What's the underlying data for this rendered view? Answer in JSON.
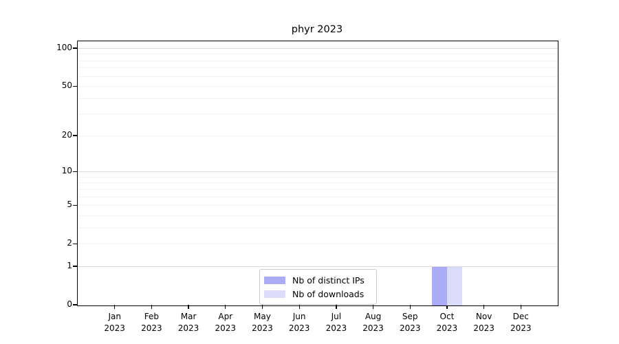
{
  "chart_data": {
    "type": "bar",
    "title": "phyr 2023",
    "categories": [
      "Jan 2023",
      "Feb 2023",
      "Mar 2023",
      "Apr 2023",
      "May 2023",
      "Jun 2023",
      "Jul 2023",
      "Aug 2023",
      "Sep 2023",
      "Oct 2023",
      "Nov 2023",
      "Dec 2023"
    ],
    "series": [
      {
        "name": "Nb of distinct IPs",
        "color": "#a9abf5",
        "values": [
          0,
          0,
          0,
          0,
          0,
          0,
          0,
          0,
          0,
          1,
          0,
          0
        ]
      },
      {
        "name": "Nb of downloads",
        "color": "#dbdcfa",
        "values": [
          0,
          0,
          0,
          0,
          0,
          0,
          0,
          0,
          0,
          1,
          0,
          0
        ]
      }
    ],
    "xlabel": "",
    "ylabel": "",
    "yscale": "log1p",
    "yticks": [
      0,
      1,
      2,
      5,
      10,
      20,
      50,
      100
    ],
    "ylim": [
      0,
      113
    ],
    "grid": true,
    "legend_position": "lower center",
    "colors": {
      "major_grid": "#d9d9d9",
      "minor_grid": "#f1f1f1",
      "axis": "#000000",
      "legend_border": "#c9c9c9",
      "background": "#ffffff"
    }
  }
}
